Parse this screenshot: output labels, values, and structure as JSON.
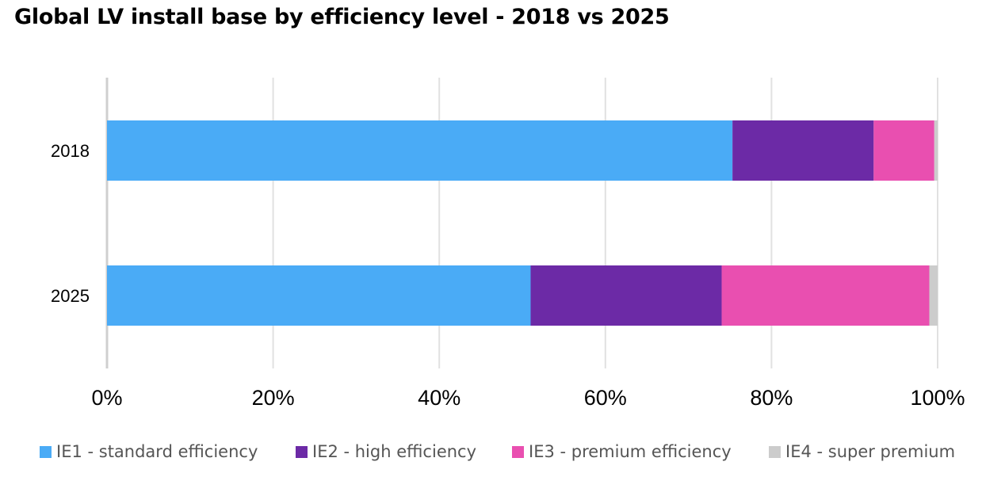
{
  "chart_data": {
    "type": "bar",
    "orientation": "horizontal",
    "stacked": true,
    "title": "Global LV install base by efficiency level - 2018 vs 2025",
    "categories": [
      "2018",
      "2025"
    ],
    "series": [
      {
        "name": "IE1 - standard efficiency",
        "color": "#4aabf6",
        "values": [
          75.3,
          51.0
        ]
      },
      {
        "name": "IE2 - high efficiency",
        "color": "#6c2aa6",
        "values": [
          17.0,
          23.0
        ]
      },
      {
        "name": "IE3 - premium efficiency",
        "color": "#e94fb0",
        "values": [
          7.3,
          25.0
        ]
      },
      {
        "name": "IE4 - super premium",
        "color": "#cccccc",
        "values": [
          0.4,
          1.0
        ]
      }
    ],
    "xlim": [
      0,
      100
    ],
    "xticks": [
      "0%",
      "20%",
      "40%",
      "60%",
      "80%",
      "100%"
    ],
    "xlabel": "",
    "ylabel": "",
    "grid": true,
    "legend": "bottom"
  }
}
